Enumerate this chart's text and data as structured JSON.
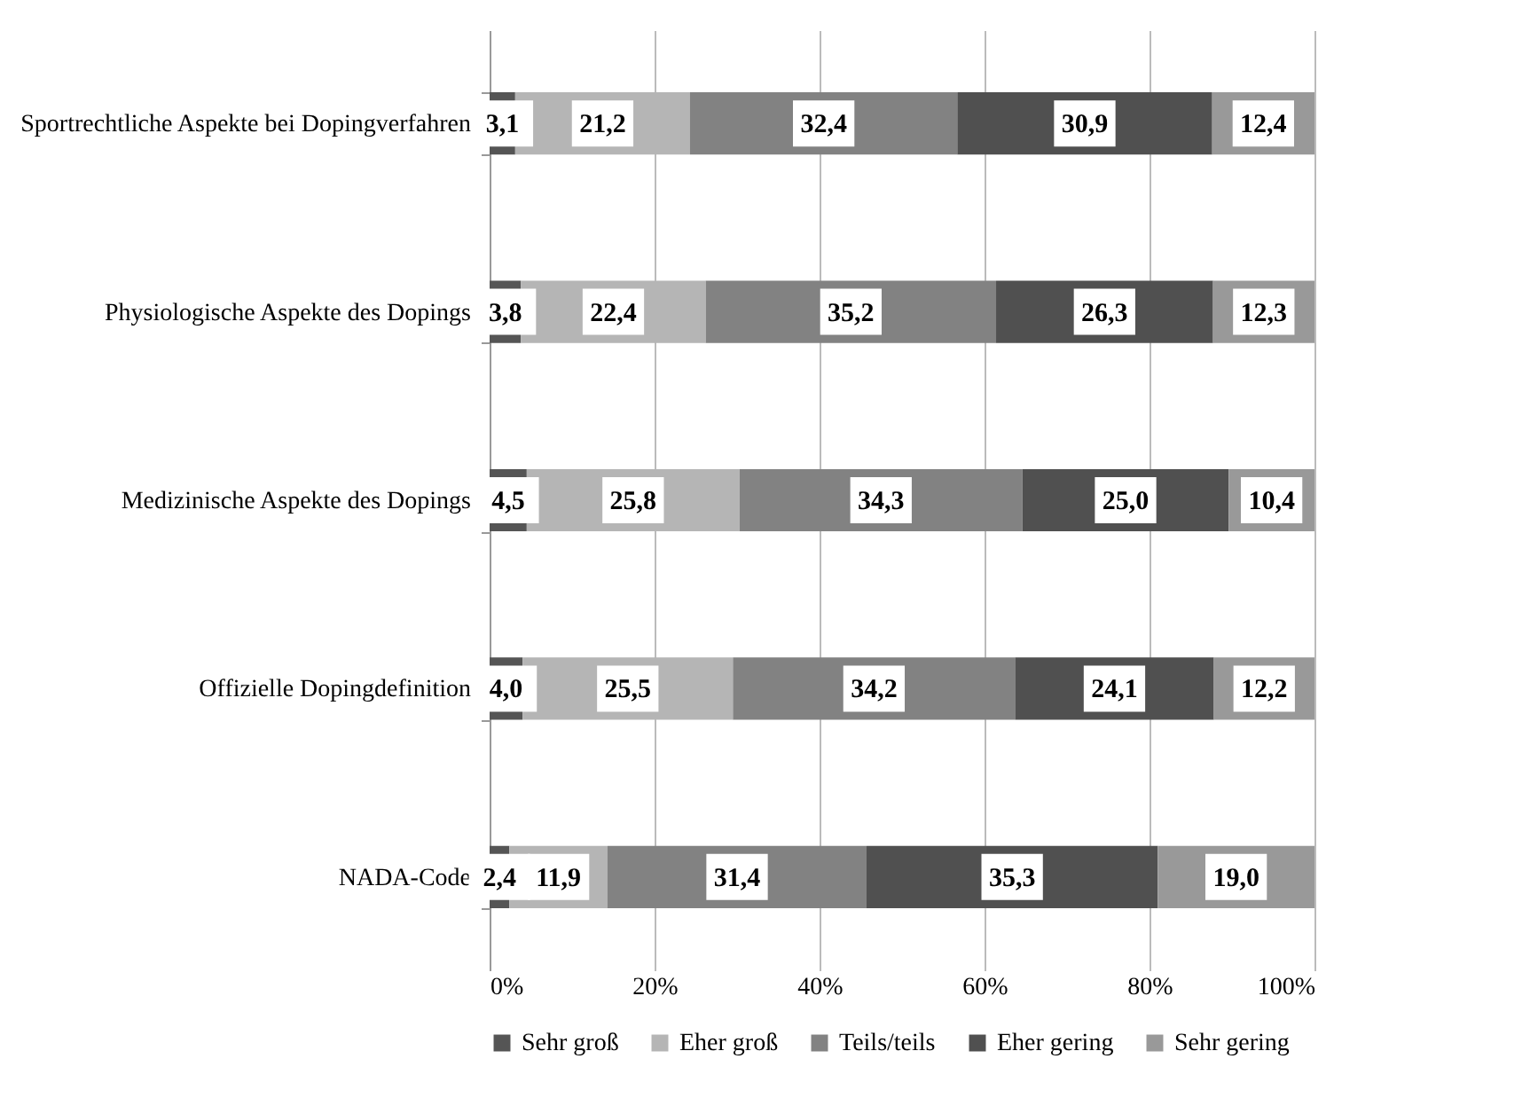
{
  "chart_data": {
    "type": "bar",
    "orientation": "horizontal",
    "stacked": true,
    "categories": [
      "Sportrechtliche Aspekte bei Dopingverfahren",
      "Physiologische Aspekte des Dopings",
      "Medizinische Aspekte des Dopings",
      "Offizielle Dopingdefinition",
      "NADA-Code"
    ],
    "series": [
      {
        "name": "Sehr groß",
        "color": "#555555",
        "values": [
          3.1,
          3.8,
          4.5,
          4.0,
          2.4
        ],
        "value_labels": [
          "3,1",
          "3,8",
          "4,5",
          "4,0",
          "2,4"
        ]
      },
      {
        "name": "Eher groß",
        "color": "#b5b5b5",
        "values": [
          21.2,
          22.4,
          25.8,
          25.5,
          11.9
        ],
        "value_labels": [
          "21,2",
          "22,4",
          "25,8",
          "25,5",
          "11,9"
        ]
      },
      {
        "name": "Teils/teils",
        "color": "#828282",
        "values": [
          32.4,
          35.2,
          34.3,
          34.2,
          31.4
        ],
        "value_labels": [
          "32,4",
          "35,2",
          "34,3",
          "34,2",
          "31,4"
        ]
      },
      {
        "name": "Eher gering",
        "color": "#505050",
        "values": [
          30.9,
          26.3,
          25.0,
          24.1,
          35.3
        ],
        "value_labels": [
          "30,9",
          "26,3",
          "25,0",
          "24,1",
          "35,3"
        ]
      },
      {
        "name": "Sehr gering",
        "color": "#999999",
        "values": [
          12.4,
          12.3,
          10.4,
          12.2,
          19.0
        ],
        "value_labels": [
          "12,4",
          "12,3",
          "10,4",
          "12,2",
          "19,0"
        ]
      }
    ],
    "xlim": [
      0,
      100
    ],
    "xticks": [
      {
        "value": 0,
        "label": "0%"
      },
      {
        "value": 20,
        "label": "20%"
      },
      {
        "value": 40,
        "label": "40%"
      },
      {
        "value": 60,
        "label": "60%"
      },
      {
        "value": 80,
        "label": "80%"
      },
      {
        "value": 100,
        "label": "100%"
      }
    ],
    "grid": "x",
    "legend": "bottom"
  }
}
